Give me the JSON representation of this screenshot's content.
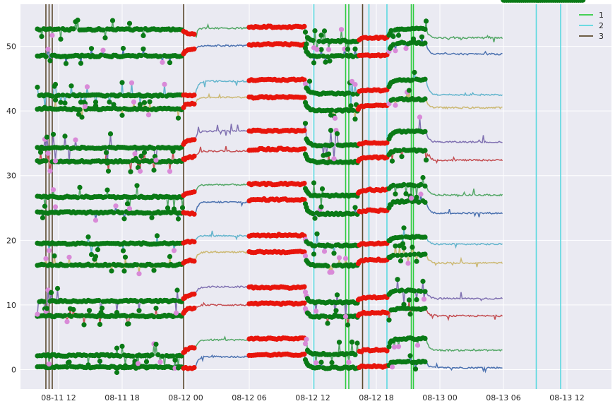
{
  "chart_data": {
    "type": "line",
    "title": "",
    "xlabel": "",
    "ylabel": "",
    "x_unit": "hours",
    "xlim": [
      -3.6,
      52.2
    ],
    "ylim": [
      -3,
      56.5
    ],
    "xticks": [
      {
        "x": 0,
        "label": "08-11 12"
      },
      {
        "x": 6,
        "label": "08-11 18"
      },
      {
        "x": 12,
        "label": "08-12 00"
      },
      {
        "x": 18,
        "label": "08-12 06"
      },
      {
        "x": 24,
        "label": "08-12 12"
      },
      {
        "x": 30,
        "label": "08-12 18"
      },
      {
        "x": 36,
        "label": "08-13 00"
      },
      {
        "x": 42,
        "label": "08-13 06"
      },
      {
        "x": 48,
        "label": "08-13 12"
      }
    ],
    "yticks": [
      0,
      10,
      20,
      30,
      40,
      50
    ],
    "grid": true,
    "background": "#eaeaf2",
    "legend": {
      "position": "top-right",
      "entries": [
        {
          "label": "1",
          "color": "#2ecc40"
        },
        {
          "label": "2",
          "color": "#5ad8e0"
        },
        {
          "label": "3",
          "color": "#5c4a2e"
        }
      ]
    },
    "vlines": [
      {
        "group": "1",
        "x": [
          27.1,
          27.4,
          33.3,
          33.5
        ]
      },
      {
        "group": "2",
        "x": [
          24.1,
          29.3,
          31.0,
          45.1,
          47.4
        ]
      },
      {
        "group": "3",
        "x": [
          -1.2,
          -0.9,
          -0.6,
          11.8,
          28.7
        ]
      }
    ],
    "x_start": -2.0,
    "x_step": 0.1,
    "segments": [
      {
        "x": [
          -2.0,
          11.8
        ],
        "marker": "green",
        "color": "#0a7a16"
      },
      {
        "x": [
          11.8,
          13.0
        ],
        "marker": "red",
        "color": "#e8150c"
      },
      {
        "x": [
          13.0,
          18.0
        ],
        "marker": "none"
      },
      {
        "x": [
          18.0,
          23.3
        ],
        "marker": "red",
        "color": "#e8150c"
      },
      {
        "x": [
          23.3,
          28.3
        ],
        "marker": "green",
        "color": "#0a7a16"
      },
      {
        "x": [
          28.3,
          31.2
        ],
        "marker": "red",
        "color": "#e8150c"
      },
      {
        "x": [
          31.2,
          34.8
        ],
        "marker": "green",
        "color": "#0a7a16"
      },
      {
        "x": [
          34.8,
          42.0
        ],
        "marker": "none"
      },
      {
        "x": [
          42.0,
          49.5
        ],
        "marker": "green",
        "color": "#0a7a16"
      }
    ],
    "series": [
      {
        "name": "",
        "color": "#4c72b0",
        "base": 0.3,
        "levels": [
          0.4,
          0.2,
          2.0,
          2.3,
          0.3,
          0.5,
          1.2,
          0.3
        ],
        "amp": 1.2
      },
      {
        "name": "",
        "color": "#55a868",
        "base": 2.0,
        "levels": [
          2.2,
          3.3,
          4.6,
          4.8,
          2.4,
          3.0,
          4.8,
          3.0
        ],
        "amp": 2.0
      },
      {
        "name": "",
        "color": "#c44e52",
        "base": 8.2,
        "levels": [
          8.3,
          9.5,
          10.0,
          10.2,
          8.2,
          8.8,
          9.4,
          8.3
        ],
        "amp": 1.4
      },
      {
        "name": "",
        "color": "#8172b2",
        "base": 10.5,
        "levels": [
          10.6,
          11.6,
          12.8,
          12.7,
          10.4,
          11.2,
          12.2,
          11.0
        ],
        "amp": 2.2
      },
      {
        "name": "",
        "color": "#ccb974",
        "base": 16.1,
        "levels": [
          16.2,
          16.9,
          18.2,
          18.2,
          16.1,
          17.0,
          17.8,
          16.5
        ],
        "amp": 1.4
      },
      {
        "name": "",
        "color": "#64b5cd",
        "base": 19.4,
        "levels": [
          19.5,
          19.8,
          20.7,
          20.8,
          19.2,
          19.5,
          20.5,
          19.4
        ],
        "amp": 1.8
      },
      {
        "name": "",
        "color": "#4c72b0",
        "base": 24.0,
        "levels": [
          24.3,
          24.1,
          25.9,
          26.3,
          24.1,
          24.6,
          26.0,
          24.2
        ],
        "amp": 1.3
      },
      {
        "name": "",
        "color": "#55a868",
        "base": 26.6,
        "levels": [
          26.7,
          27.4,
          28.6,
          28.7,
          26.9,
          27.8,
          28.5,
          27.0
        ],
        "amp": 2.0
      },
      {
        "name": "",
        "color": "#c44e52",
        "base": 32.0,
        "levels": [
          32.2,
          32.9,
          33.8,
          34.1,
          32.1,
          32.8,
          33.9,
          32.4
        ],
        "amp": 1.6
      },
      {
        "name": "",
        "color": "#8172b2",
        "base": 34.4,
        "levels": [
          34.3,
          35.6,
          36.9,
          36.9,
          34.7,
          35.1,
          36.8,
          35.2
        ],
        "amp": 2.4
      },
      {
        "name": "",
        "color": "#ccb974",
        "base": 40.2,
        "levels": [
          40.3,
          41.2,
          42.1,
          42.1,
          40.1,
          40.8,
          41.8,
          40.5
        ],
        "amp": 1.4
      },
      {
        "name": "",
        "color": "#64b5cd",
        "base": 42.3,
        "levels": [
          42.4,
          42.4,
          44.6,
          44.8,
          42.7,
          43.2,
          44.8,
          42.5
        ],
        "amp": 2.0
      },
      {
        "name": "",
        "color": "#4c72b0",
        "base": 48.4,
        "levels": [
          48.5,
          49.6,
          50.1,
          50.3,
          48.5,
          48.6,
          50.5,
          48.8
        ],
        "amp": 1.2
      },
      {
        "name": "",
        "color": "#55a868",
        "base": 51.4,
        "levels": [
          52.6,
          51.9,
          52.8,
          53.0,
          50.8,
          51.3,
          52.7,
          51.3
        ],
        "amp": 1.8
      }
    ]
  }
}
